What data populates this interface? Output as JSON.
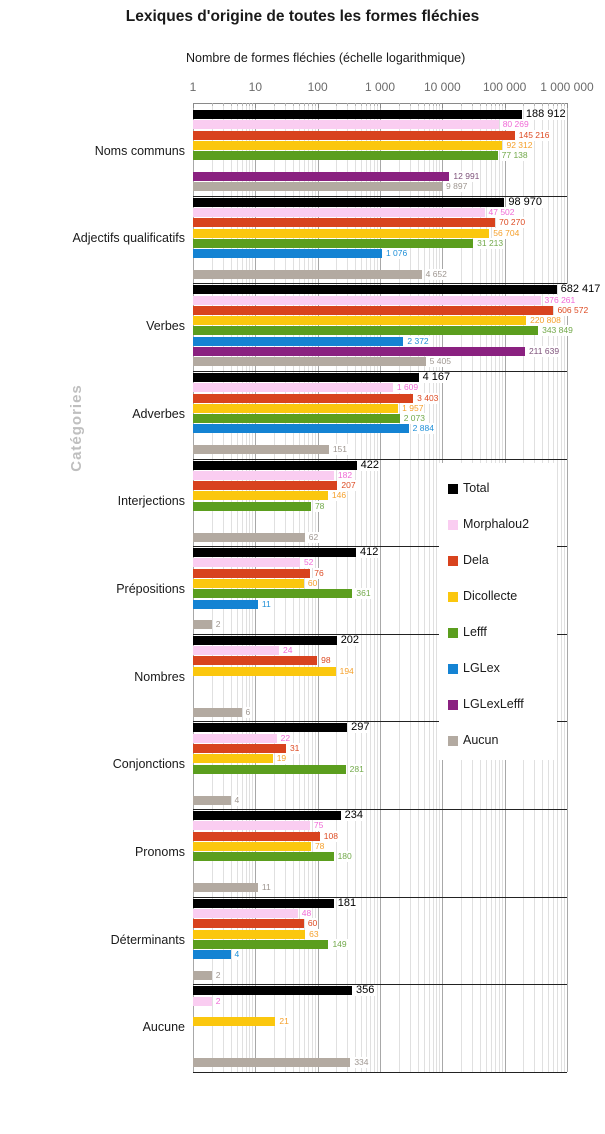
{
  "title": "Lexiques d'origine de toutes les formes fléchies",
  "chart_data": {
    "type": "bar",
    "orientation": "horizontal",
    "x_axis": {
      "title": "Nombre de formes fléchies (échelle logarithmique)",
      "scale": "log",
      "range": [
        1,
        1000000
      ],
      "ticks": [
        "1",
        "10",
        "100",
        "1 000",
        "10 000",
        "100 000",
        "1 000 000"
      ]
    },
    "y_axis": {
      "title": "Catégories"
    },
    "grid": "on",
    "legend_position": "right-inside",
    "categories": [
      "Noms communs",
      "Adjectifs qualificatifs",
      "Verbes",
      "Adverbes",
      "Interjections",
      "Prépositions",
      "Nombres",
      "Conjonctions",
      "Pronoms",
      "Déterminants",
      "Aucune"
    ],
    "series": [
      {
        "name": "Total",
        "color": "#000000",
        "label_color": "#000000",
        "values": [
          188912,
          98970,
          682417,
          4167,
          422,
          412,
          202,
          297,
          234,
          181,
          356
        ]
      },
      {
        "name": "Morphalou2",
        "color": "#facdf1",
        "label_color": "#f06ad6",
        "values": [
          80269,
          47502,
          376261,
          1609,
          182,
          52,
          24,
          22,
          75,
          48,
          2
        ]
      },
      {
        "name": "Dela",
        "color": "#d8431e",
        "label_color": "#dd4a22",
        "values": [
          145216,
          70270,
          606572,
          3403,
          207,
          76,
          98,
          31,
          108,
          60,
          null
        ]
      },
      {
        "name": "Dicollecte",
        "color": "#fbc70e",
        "label_color": "#f5a02b",
        "values": [
          92312,
          56704,
          220808,
          1957,
          146,
          60,
          194,
          19,
          78,
          63,
          21
        ]
      },
      {
        "name": "Lefff",
        "color": "#5b9e1e",
        "label_color": "#72a94a",
        "values": [
          77138,
          31213,
          343849,
          2073,
          78,
          361,
          null,
          281,
          180,
          149,
          null
        ]
      },
      {
        "name": "LGLex",
        "color": "#1483d3",
        "label_color": "#2090d8",
        "values": [
          null,
          1076,
          2372,
          2884,
          null,
          11,
          null,
          null,
          null,
          4,
          null
        ]
      },
      {
        "name": "LGLexLefff",
        "color": "#8a2180",
        "label_color": "#7e527a",
        "values": [
          12991,
          null,
          211639,
          null,
          null,
          null,
          null,
          null,
          null,
          null,
          null
        ]
      },
      {
        "name": "Aucun",
        "color": "#b3aaa1",
        "label_color": "#9e9690",
        "values": [
          9897,
          4652,
          5405,
          151,
          62,
          2,
          6,
          4,
          11,
          2,
          334
        ]
      }
    ]
  }
}
